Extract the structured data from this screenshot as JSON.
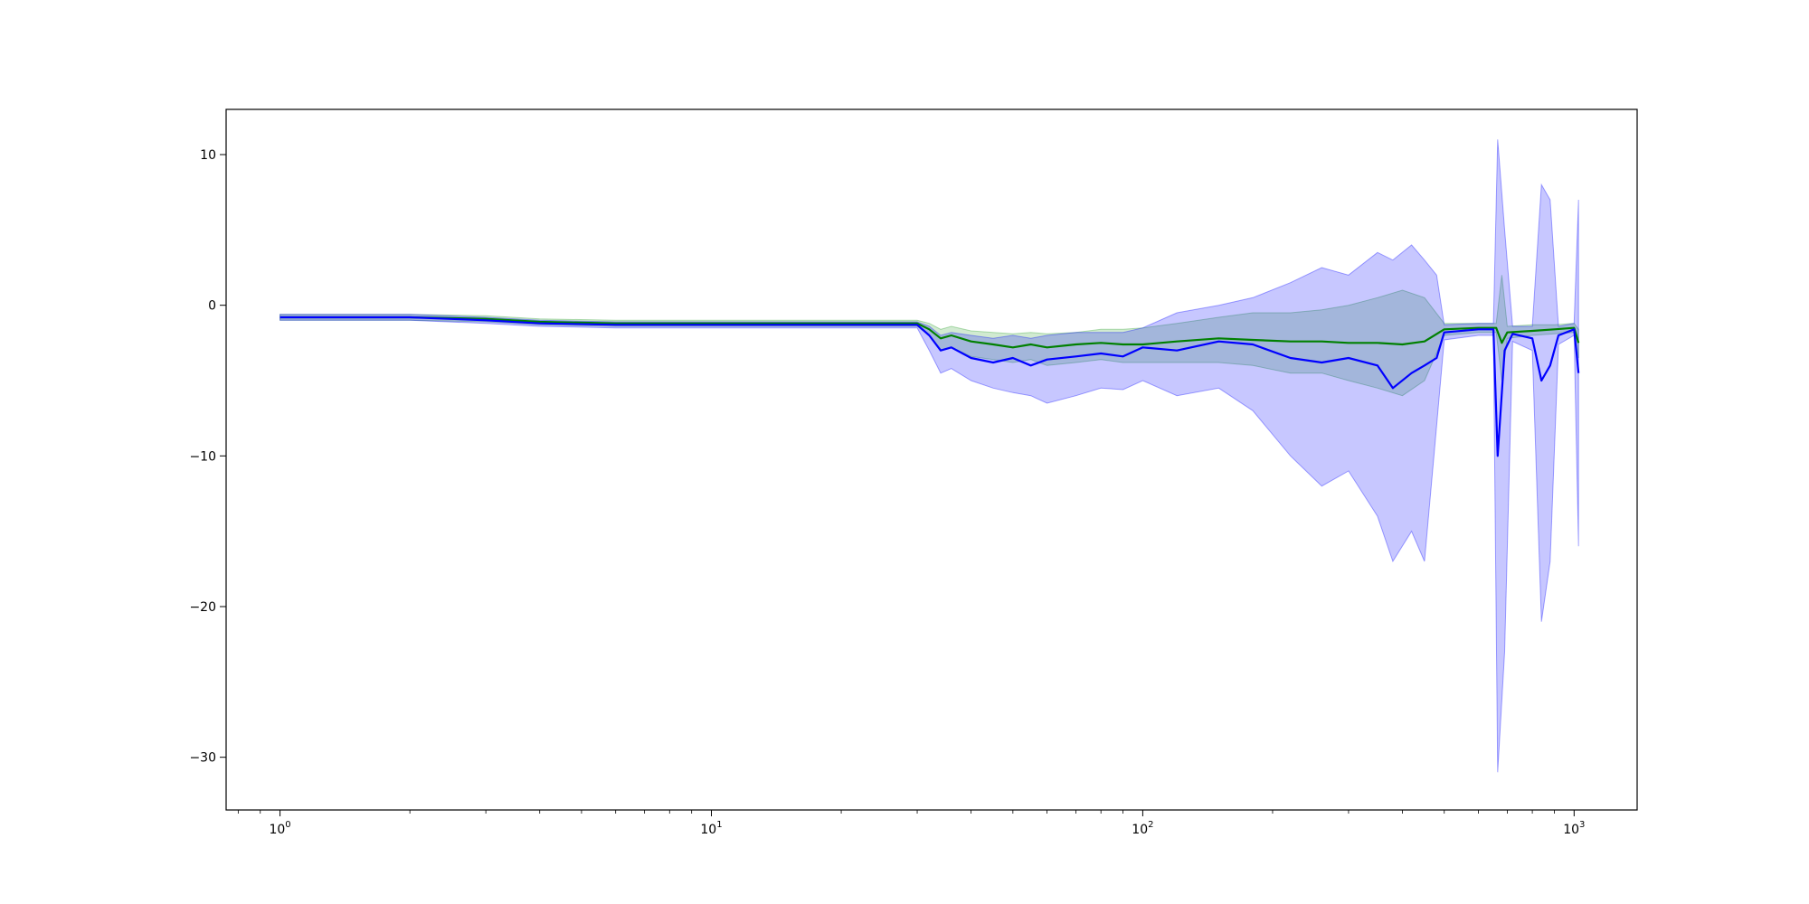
{
  "chart_data": {
    "type": "line",
    "title": "",
    "xlabel": "",
    "ylabel": "",
    "xscale": "log",
    "xlim": [
      0.75,
      1400
    ],
    "ylim": [
      -33.5,
      13
    ],
    "grid": false,
    "legend": "none",
    "x_ticks": [
      {
        "value": 1,
        "base": "10",
        "exp": "0"
      },
      {
        "value": 10,
        "base": "10",
        "exp": "1"
      },
      {
        "value": 100,
        "base": "10",
        "exp": "2"
      },
      {
        "value": 1000,
        "base": "10",
        "exp": "3"
      }
    ],
    "y_ticks": [
      {
        "value": 10,
        "label": "10"
      },
      {
        "value": 0,
        "label": "0"
      },
      {
        "value": -10,
        "label": "−10"
      },
      {
        "value": -20,
        "label": "−20"
      },
      {
        "value": -30,
        "label": "−30"
      }
    ],
    "series": [
      {
        "color": "#008000",
        "band_color": "#2ca02c",
        "points": [
          [
            1,
            -0.8,
            -0.6,
            -1.0
          ],
          [
            2,
            -0.8,
            -0.6,
            -1.0
          ],
          [
            3,
            -0.9,
            -0.7,
            -1.1
          ],
          [
            4,
            -1.1,
            -0.9,
            -1.3
          ],
          [
            6,
            -1.2,
            -1.0,
            -1.4
          ],
          [
            10,
            -1.2,
            -1.0,
            -1.4
          ],
          [
            15,
            -1.2,
            -1.0,
            -1.4
          ],
          [
            20,
            -1.2,
            -1.0,
            -1.4
          ],
          [
            30,
            -1.2,
            -1.0,
            -1.4
          ],
          [
            32,
            -1.6,
            -1.2,
            -2.0
          ],
          [
            34,
            -2.2,
            -1.6,
            -3.0
          ],
          [
            36,
            -2.0,
            -1.4,
            -2.8
          ],
          [
            40,
            -2.4,
            -1.7,
            -3.4
          ],
          [
            45,
            -2.6,
            -1.8,
            -3.6
          ],
          [
            50,
            -2.8,
            -1.9,
            -3.8
          ],
          [
            55,
            -2.6,
            -1.8,
            -3.6
          ],
          [
            60,
            -2.8,
            -1.9,
            -4.0
          ],
          [
            70,
            -2.6,
            -1.8,
            -3.8
          ],
          [
            80,
            -2.5,
            -1.6,
            -3.6
          ],
          [
            90,
            -2.6,
            -1.6,
            -3.8
          ],
          [
            100,
            -2.6,
            -1.5,
            -3.8
          ],
          [
            120,
            -2.4,
            -1.2,
            -3.8
          ],
          [
            150,
            -2.2,
            -0.8,
            -3.8
          ],
          [
            180,
            -2.3,
            -0.5,
            -4.0
          ],
          [
            220,
            -2.4,
            -0.5,
            -4.5
          ],
          [
            260,
            -2.4,
            -0.3,
            -4.5
          ],
          [
            300,
            -2.5,
            0.0,
            -5.0
          ],
          [
            350,
            -2.5,
            0.5,
            -5.5
          ],
          [
            400,
            -2.6,
            1.0,
            -6.0
          ],
          [
            450,
            -2.4,
            0.5,
            -5.0
          ],
          [
            500,
            -1.6,
            -1.2,
            -2.0
          ],
          [
            600,
            -1.5,
            -1.2,
            -1.8
          ],
          [
            660,
            -1.5,
            -1.2,
            -1.8
          ],
          [
            680,
            -2.5,
            2.0,
            -5.0
          ],
          [
            700,
            -1.8,
            -1.4,
            -2.2
          ],
          [
            800,
            -1.7,
            -1.3,
            -2.0
          ],
          [
            900,
            -1.6,
            -1.3,
            -1.9
          ],
          [
            1000,
            -1.5,
            -1.2,
            -1.8
          ],
          [
            1024,
            -2.5,
            -1.6,
            -3.5
          ]
        ]
      },
      {
        "color": "#0000ff",
        "band_color": "#0000ff",
        "points": [
          [
            1,
            -0.8,
            -0.6,
            -1.0
          ],
          [
            2,
            -0.8,
            -0.6,
            -1.0
          ],
          [
            3,
            -1.0,
            -0.8,
            -1.2
          ],
          [
            4,
            -1.2,
            -1.0,
            -1.4
          ],
          [
            6,
            -1.3,
            -1.1,
            -1.5
          ],
          [
            10,
            -1.3,
            -1.1,
            -1.5
          ],
          [
            15,
            -1.3,
            -1.1,
            -1.5
          ],
          [
            20,
            -1.3,
            -1.1,
            -1.5
          ],
          [
            30,
            -1.3,
            -1.1,
            -1.5
          ],
          [
            32,
            -2.0,
            -1.4,
            -3.0
          ],
          [
            34,
            -3.0,
            -2.0,
            -4.5
          ],
          [
            36,
            -2.8,
            -1.8,
            -4.2
          ],
          [
            40,
            -3.5,
            -2.0,
            -5.0
          ],
          [
            45,
            -3.8,
            -2.2,
            -5.5
          ],
          [
            50,
            -3.5,
            -2.0,
            -5.8
          ],
          [
            55,
            -4.0,
            -2.2,
            -6.0
          ],
          [
            60,
            -3.6,
            -2.0,
            -6.5
          ],
          [
            70,
            -3.4,
            -1.8,
            -6.0
          ],
          [
            80,
            -3.2,
            -1.8,
            -5.5
          ],
          [
            90,
            -3.4,
            -1.8,
            -5.6
          ],
          [
            100,
            -2.8,
            -1.5,
            -5.0
          ],
          [
            120,
            -3.0,
            -0.5,
            -6.0
          ],
          [
            150,
            -2.4,
            0.0,
            -5.5
          ],
          [
            180,
            -2.6,
            0.5,
            -7.0
          ],
          [
            220,
            -3.5,
            1.5,
            -10.0
          ],
          [
            260,
            -3.8,
            2.5,
            -12.0
          ],
          [
            300,
            -3.5,
            2.0,
            -11.0
          ],
          [
            350,
            -4.0,
            3.5,
            -14.0
          ],
          [
            380,
            -5.5,
            3.0,
            -17.0
          ],
          [
            420,
            -4.5,
            4.0,
            -15.0
          ],
          [
            450,
            -4.0,
            3.0,
            -17.0
          ],
          [
            480,
            -3.5,
            2.0,
            -8.0
          ],
          [
            500,
            -1.8,
            -1.3,
            -2.3
          ],
          [
            600,
            -1.6,
            -1.2,
            -2.0
          ],
          [
            650,
            -1.6,
            -1.2,
            -2.0
          ],
          [
            665,
            -10.0,
            11.0,
            -31.0
          ],
          [
            690,
            -3.0,
            5.0,
            -23.0
          ],
          [
            720,
            -1.9,
            -1.4,
            -2.4
          ],
          [
            800,
            -2.2,
            -1.4,
            -3.0
          ],
          [
            840,
            -5.0,
            8.0,
            -21.0
          ],
          [
            880,
            -4.0,
            7.0,
            -17.0
          ],
          [
            920,
            -2.0,
            -1.4,
            -2.6
          ],
          [
            1000,
            -1.6,
            -1.2,
            -2.0
          ],
          [
            1024,
            -4.5,
            7.0,
            -16.0
          ]
        ]
      }
    ]
  }
}
